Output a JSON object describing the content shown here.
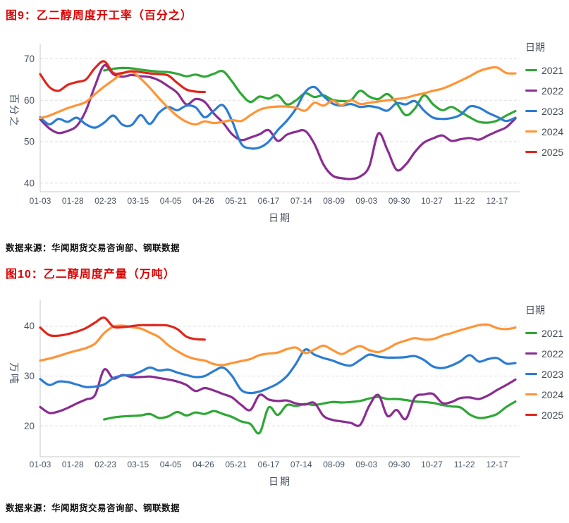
{
  "chart_data": [
    {
      "type": "line",
      "title": "图9：乙二醇周度开工率（百分之）",
      "ylabel": "百分之",
      "xlabel": "日期",
      "legend_title": "日期",
      "source": "数据来源：华闻期货交易咨询部、钢联数据",
      "grid": true,
      "legend_position": "right",
      "ylim": [
        40,
        70
      ],
      "y_ticks": [
        40,
        50,
        60,
        70
      ],
      "x_tick_labels": [
        "01-03",
        "01-28",
        "02-23",
        "03-15",
        "04-05",
        "04-26",
        "05-21",
        "06-17",
        "07-14",
        "08-09",
        "09-03",
        "09-30",
        "10-27",
        "11-22",
        "12-17"
      ],
      "series": [
        {
          "name": "2021",
          "color": "#2ea836",
          "start_week": 7,
          "values": [
            67.2,
            67.6,
            67.8,
            67.7,
            67.4,
            67.1,
            66.9,
            66.8,
            66.4,
            65.8,
            66.2,
            65.7,
            66.4,
            67.0,
            64.5,
            61.5,
            59.6,
            60.9,
            60.4,
            61.2,
            59.0,
            60.0,
            61.7,
            60.8,
            61.2,
            60.1,
            59.8,
            60.0,
            62.3,
            60.9,
            60.3,
            61.5,
            59.3,
            56.4,
            58.0,
            61.2,
            59.0,
            57.6,
            58.4,
            57.2,
            55.9,
            54.8,
            54.6,
            55.1,
            56.3,
            57.4
          ]
        },
        {
          "name": "2022",
          "color": "#8a2d91",
          "start_week": 0,
          "values": [
            55.4,
            53.2,
            52.1,
            52.6,
            53.8,
            57.5,
            63.5,
            68.4,
            66.3,
            65.7,
            66.1,
            65.8,
            65.6,
            64.8,
            63.4,
            61.8,
            59.0,
            60.3,
            59.6,
            56.8,
            54.6,
            51.8,
            50.4,
            51.0,
            51.8,
            52.8,
            50.2,
            51.7,
            52.4,
            52.6,
            49.5,
            44.5,
            41.8,
            41.2,
            41.0,
            41.6,
            44.0,
            52.0,
            48.0,
            43.2,
            44.5,
            47.5,
            49.8,
            50.8,
            51.5,
            50.2,
            50.6,
            50.9,
            50.5,
            51.5,
            52.5,
            53.5,
            55.6
          ]
        },
        {
          "name": "2023",
          "color": "#2b7cd3",
          "start_week": 0,
          "values": [
            55.9,
            54.2,
            55.5,
            54.8,
            55.8,
            54.2,
            53.4,
            54.6,
            56.3,
            54.1,
            54.0,
            56.4,
            54.3,
            57.0,
            58.4,
            57.6,
            58.7,
            58.3,
            55.9,
            57.5,
            58.8,
            55.0,
            49.5,
            48.4,
            48.6,
            50.0,
            52.8,
            55.1,
            58.0,
            62.0,
            63.2,
            61.0,
            59.2,
            58.7,
            59.1,
            58.4,
            58.6,
            58.2,
            57.5,
            59.3,
            59.0,
            59.8,
            57.5,
            55.8,
            55.5,
            55.7,
            56.5,
            58.5,
            58.2,
            57.0,
            56.0,
            55.0,
            55.8
          ]
        },
        {
          "name": "2024",
          "color": "#ff9436",
          "start_week": 0,
          "values": [
            55.7,
            56.3,
            57.2,
            58.1,
            58.8,
            59.6,
            61.5,
            63.3,
            64.9,
            66.5,
            66.9,
            65.2,
            63.0,
            60.5,
            58.2,
            56.2,
            54.8,
            54.2,
            54.9,
            54.5,
            54.8,
            55.2,
            55.0,
            56.4,
            57.7,
            58.3,
            58.5,
            58.5,
            58.2,
            57.5,
            59.4,
            58.7,
            59.9,
            58.8,
            60.1,
            59.1,
            59.4,
            59.7,
            60.0,
            60.3,
            60.6,
            61.2,
            61.7,
            62.3,
            62.8,
            63.7,
            64.7,
            65.8,
            67.0,
            67.7,
            67.9,
            66.6,
            66.5
          ]
        },
        {
          "name": "2025",
          "color": "#e0251b",
          "start_week": 0,
          "values": [
            66.3,
            63.2,
            62.3,
            63.7,
            64.4,
            65.0,
            67.8,
            69.4,
            66.6,
            66.6,
            67.0,
            66.8,
            66.5,
            66.3,
            66.0,
            64.2,
            62.6,
            62.1,
            62.0
          ]
        }
      ]
    },
    {
      "type": "line",
      "title": "图10：乙二醇周度产量（万吨）",
      "ylabel": "万吨",
      "xlabel": "日期",
      "legend_title": "日期",
      "source": "数据来源：华闻期货交易咨询部、钢联数据",
      "grid": true,
      "legend_position": "right",
      "ylim": [
        15,
        45
      ],
      "y_ticks": [
        20,
        30,
        40
      ],
      "x_tick_labels": [
        "01-03",
        "01-28",
        "02-23",
        "03-15",
        "04-05",
        "04-26",
        "05-21",
        "06-17",
        "07-14",
        "08-09",
        "09-03",
        "09-30",
        "10-27",
        "11-22",
        "12-17"
      ],
      "series": [
        {
          "name": "2021",
          "color": "#2ea836",
          "start_week": 7,
          "values": [
            21.3,
            21.7,
            21.9,
            22.0,
            22.1,
            22.4,
            21.6,
            21.9,
            22.8,
            22.1,
            22.7,
            22.4,
            23.0,
            22.4,
            21.8,
            20.9,
            20.4,
            18.6,
            23.7,
            22.2,
            24.2,
            24.0,
            24.4,
            24.2,
            24.5,
            24.8,
            24.7,
            24.8,
            25.0,
            25.5,
            25.8,
            25.4,
            25.4,
            25.2,
            24.9,
            24.8,
            24.6,
            24.2,
            23.9,
            23.7,
            22.3,
            21.6,
            21.8,
            22.4,
            23.8,
            24.9
          ]
        },
        {
          "name": "2022",
          "color": "#8a2d91",
          "start_week": 0,
          "values": [
            23.8,
            22.6,
            22.9,
            23.6,
            24.5,
            25.3,
            26.2,
            31.3,
            29.5,
            30.2,
            29.8,
            29.8,
            29.9,
            29.6,
            29.3,
            28.9,
            28.2,
            27.0,
            27.6,
            27.1,
            26.4,
            25.7,
            24.2,
            23.2,
            26.2,
            25.3,
            25.0,
            25.1,
            24.5,
            24.3,
            24.6,
            22.0,
            21.2,
            20.9,
            20.6,
            20.2,
            24.0,
            26.2,
            22.0,
            23.2,
            21.4,
            25.7,
            26.3,
            26.4,
            24.6,
            24.8,
            25.6,
            25.7,
            25.4,
            26.1,
            27.2,
            28.2,
            29.3
          ]
        },
        {
          "name": "2023",
          "color": "#2b7cd3",
          "start_week": 0,
          "values": [
            29.4,
            28.2,
            28.9,
            28.8,
            28.3,
            27.8,
            27.9,
            28.3,
            29.6,
            30.1,
            30.2,
            30.9,
            31.7,
            31.1,
            31.3,
            30.7,
            30.2,
            29.8,
            30.0,
            31.0,
            31.7,
            30.0,
            27.2,
            26.6,
            26.9,
            27.6,
            28.5,
            30.0,
            32.5,
            35.3,
            34.3,
            33.6,
            33.1,
            32.4,
            32.1,
            33.2,
            34.3,
            33.9,
            33.7,
            33.7,
            33.8,
            34.0,
            33.2,
            31.9,
            31.6,
            32.1,
            33.0,
            34.2,
            32.9,
            33.4,
            33.6,
            32.5,
            32.6
          ]
        },
        {
          "name": "2024",
          "color": "#ff9436",
          "start_week": 0,
          "values": [
            33.1,
            33.5,
            34.0,
            34.6,
            35.1,
            35.6,
            36.5,
            38.6,
            39.9,
            40.1,
            39.8,
            39.5,
            38.7,
            37.8,
            36.2,
            35.0,
            34.0,
            33.4,
            33.1,
            32.4,
            32.2,
            32.6,
            33.0,
            33.4,
            34.2,
            34.5,
            34.7,
            35.4,
            35.7,
            34.6,
            35.3,
            36.1,
            35.2,
            34.4,
            35.3,
            36.0,
            35.2,
            34.8,
            35.5,
            36.5,
            37.1,
            37.6,
            37.3,
            37.4,
            38.1,
            38.6,
            39.2,
            39.7,
            40.2,
            40.3,
            39.6,
            39.4,
            39.7
          ]
        },
        {
          "name": "2025",
          "color": "#e0251b",
          "start_week": 0,
          "values": [
            39.7,
            38.2,
            38.1,
            38.4,
            38.9,
            39.6,
            40.7,
            41.7,
            39.9,
            39.8,
            40.0,
            40.2,
            40.2,
            40.2,
            40.1,
            39.4,
            37.9,
            37.4,
            37.3
          ]
        }
      ]
    }
  ]
}
